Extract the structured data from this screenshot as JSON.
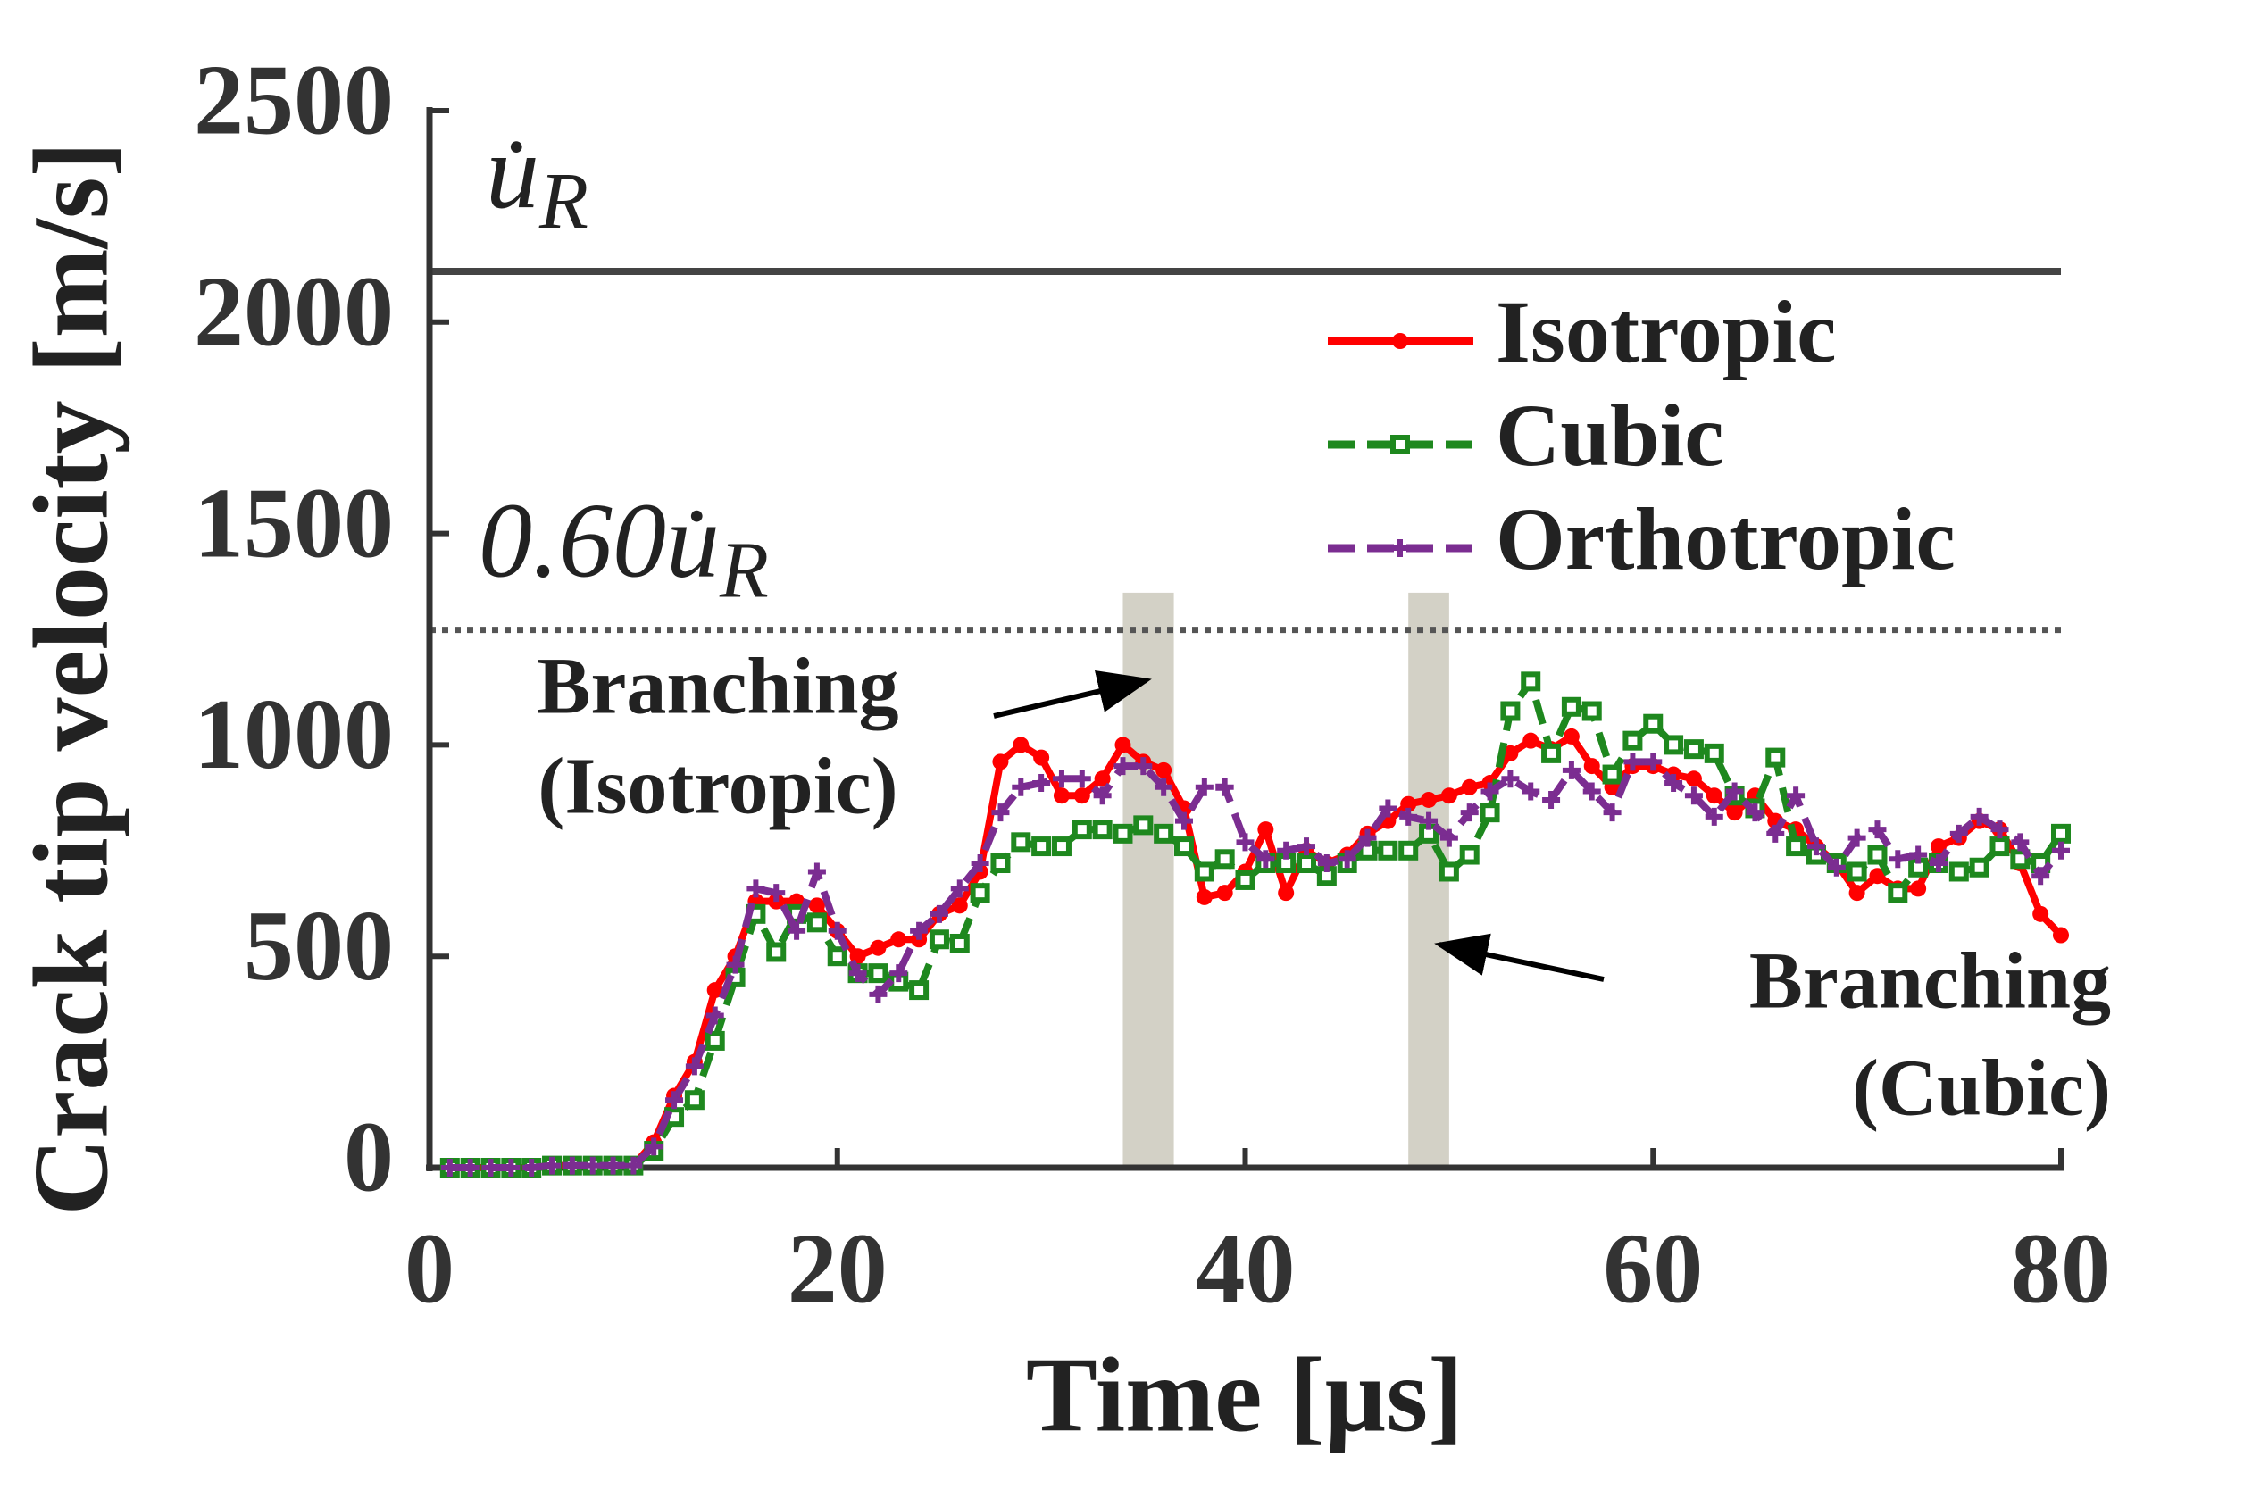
{
  "chart_data": {
    "type": "line",
    "xlabel": "Time [µs]",
    "ylabel": "Crack tip velocity [m/s]",
    "xlim": [
      0,
      80
    ],
    "ylim": [
      0,
      2500
    ],
    "xticks": [
      0,
      20,
      40,
      60,
      80
    ],
    "yticks": [
      0,
      500,
      1000,
      1500,
      2000,
      2500
    ],
    "grid": false,
    "legend": "upper right",
    "x": [
      1,
      2,
      3,
      4,
      5,
      6,
      7,
      8,
      9,
      10,
      11,
      12,
      13,
      14,
      15,
      16,
      17,
      18,
      19,
      20,
      21,
      22,
      23,
      24,
      25,
      26,
      27,
      28,
      29,
      30,
      31,
      32,
      33,
      34,
      35,
      36,
      37,
      38,
      39,
      40,
      41,
      42,
      43,
      44,
      45,
      46,
      47,
      48,
      49,
      50,
      51,
      52,
      53,
      54,
      55,
      56,
      57,
      58,
      59,
      60,
      61,
      62,
      63,
      64,
      65,
      66,
      67,
      68,
      69,
      70,
      71,
      72,
      73,
      74,
      75,
      76,
      77,
      78,
      79,
      80
    ],
    "series": [
      {
        "name": "Isotropic",
        "color": "#ff0000",
        "dash": "solid",
        "marker": "circle",
        "values": [
          0,
          0,
          0,
          0,
          0,
          5,
          5,
          5,
          5,
          5,
          60,
          170,
          250,
          420,
          500,
          630,
          630,
          630,
          620,
          560,
          500,
          520,
          540,
          540,
          600,
          620,
          700,
          960,
          1000,
          970,
          880,
          880,
          920,
          1000,
          960,
          940,
          850,
          640,
          650,
          700,
          800,
          650,
          750,
          720,
          740,
          790,
          820,
          860,
          870,
          880,
          900,
          910,
          980,
          1010,
          990,
          1020,
          950,
          900,
          950,
          950,
          930,
          920,
          880,
          840,
          880,
          820,
          800,
          760,
          720,
          650,
          690,
          660,
          660,
          760,
          780,
          820,
          800,
          720,
          600,
          550
        ]
      },
      {
        "name": "Cubic",
        "color": "#1e881e",
        "dash": "dashed",
        "marker": "square",
        "values": [
          0,
          0,
          0,
          0,
          0,
          5,
          5,
          5,
          5,
          5,
          40,
          120,
          160,
          300,
          450,
          600,
          510,
          600,
          580,
          500,
          460,
          460,
          440,
          420,
          540,
          530,
          650,
          720,
          770,
          760,
          760,
          800,
          800,
          790,
          810,
          790,
          760,
          700,
          730,
          680,
          720,
          720,
          720,
          690,
          720,
          750,
          750,
          750,
          790,
          700,
          740,
          840,
          1080,
          1150,
          980,
          1090,
          1080,
          930,
          1010,
          1050,
          1000,
          990,
          980,
          880,
          850,
          970,
          760,
          740,
          720,
          700,
          740,
          650,
          710,
          720,
          700,
          710,
          760,
          730,
          720,
          790
        ]
      },
      {
        "name": "Orthotropic",
        "color": "#7b2d91",
        "dash": "dashed",
        "marker": "plus",
        "values": [
          0,
          0,
          0,
          0,
          0,
          5,
          5,
          5,
          5,
          5,
          50,
          160,
          240,
          360,
          480,
          660,
          650,
          560,
          700,
          560,
          460,
          410,
          460,
          560,
          600,
          660,
          720,
          840,
          900,
          910,
          920,
          920,
          880,
          950,
          950,
          900,
          820,
          900,
          900,
          770,
          730,
          750,
          760,
          720,
          730,
          780,
          850,
          830,
          820,
          780,
          840,
          890,
          920,
          890,
          870,
          940,
          890,
          840,
          960,
          960,
          910,
          880,
          830,
          890,
          840,
          790,
          880,
          760,
          710,
          780,
          800,
          730,
          740,
          720,
          790,
          830,
          800,
          770,
          690,
          750
        ]
      }
    ],
    "reference_lines": [
      {
        "label": "u̇",
        "subscript": "R",
        "value": 2120,
        "style": "solid"
      },
      {
        "label": "0.60u̇",
        "subscript": "R",
        "value": 1272,
        "style": "dotted"
      }
    ],
    "shaded_regions": [
      {
        "x": [
          34,
          36.5
        ],
        "y": [
          0,
          1360
        ],
        "color": "#d3d1c6"
      },
      {
        "x": [
          48,
          50
        ],
        "y": [
          0,
          1360
        ],
        "color": "#d3d1c6"
      }
    ],
    "annotations": [
      {
        "lines": [
          "Branching",
          "(Isotropic)"
        ]
      },
      {
        "lines": [
          "Branching",
          "(Cubic)"
        ]
      }
    ]
  }
}
